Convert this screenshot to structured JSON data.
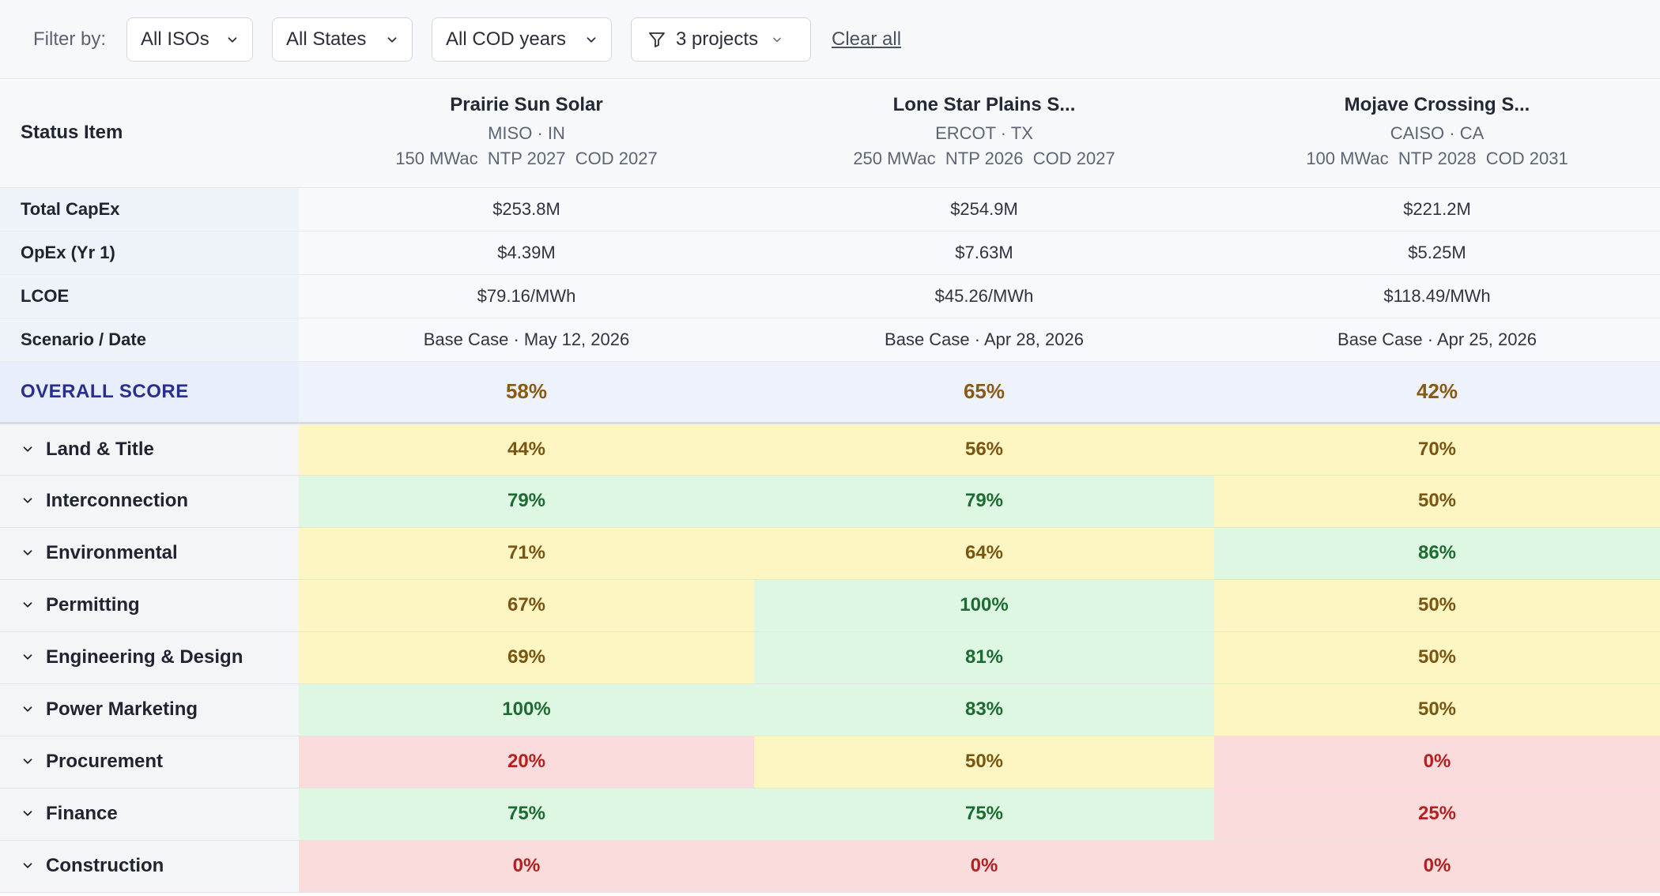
{
  "filters": {
    "label": "Filter by:",
    "iso": "All ISOs",
    "state": "All States",
    "cod": "All COD years",
    "projects": "3 projects",
    "clear": "Clear all"
  },
  "header": {
    "status_item": "Status Item",
    "projects": [
      {
        "name": "Prairie Sun Solar",
        "location": "MISO · IN",
        "specs": "150 MWac  NTP 2027  COD 2027"
      },
      {
        "name": "Lone Star Plains S...",
        "location": "ERCOT · TX",
        "specs": "250 MWac  NTP 2026  COD 2027"
      },
      {
        "name": "Mojave Crossing S...",
        "location": "CAISO · CA",
        "specs": "100 MWac  NTP 2028  COD 2031"
      }
    ]
  },
  "info_rows": [
    {
      "label": "Total CapEx",
      "values": [
        "$253.8M",
        "$254.9M",
        "$221.2M"
      ]
    },
    {
      "label": "OpEx (Yr 1)",
      "values": [
        "$4.39M",
        "$7.63M",
        "$5.25M"
      ]
    },
    {
      "label": "LCOE",
      "values": [
        "$79.16/MWh",
        "$45.26/MWh",
        "$118.49/MWh"
      ]
    },
    {
      "label": "Scenario / Date",
      "values": [
        "Base Case · May 12, 2026",
        "Base Case · Apr 28, 2026",
        "Base Case · Apr 25, 2026"
      ]
    }
  ],
  "overall": {
    "label": "OVERALL SCORE",
    "values": [
      "58%",
      "65%",
      "42%"
    ]
  },
  "categories": [
    {
      "label": "Land & Title",
      "values": [
        "44%",
        "56%",
        "70%"
      ],
      "status": [
        "yellow",
        "yellow",
        "yellow"
      ]
    },
    {
      "label": "Interconnection",
      "values": [
        "79%",
        "79%",
        "50%"
      ],
      "status": [
        "green",
        "green",
        "yellow"
      ]
    },
    {
      "label": "Environmental",
      "values": [
        "71%",
        "64%",
        "86%"
      ],
      "status": [
        "yellow",
        "yellow",
        "green"
      ]
    },
    {
      "label": "Permitting",
      "values": [
        "67%",
        "100%",
        "50%"
      ],
      "status": [
        "yellow",
        "green",
        "yellow"
      ]
    },
    {
      "label": "Engineering & Design",
      "values": [
        "69%",
        "81%",
        "50%"
      ],
      "status": [
        "yellow",
        "green",
        "yellow"
      ]
    },
    {
      "label": "Power Marketing",
      "values": [
        "100%",
        "83%",
        "50%"
      ],
      "status": [
        "green",
        "green",
        "yellow"
      ]
    },
    {
      "label": "Procurement",
      "values": [
        "20%",
        "50%",
        "0%"
      ],
      "status": [
        "red",
        "yellow",
        "red"
      ]
    },
    {
      "label": "Finance",
      "values": [
        "75%",
        "75%",
        "25%"
      ],
      "status": [
        "green",
        "green",
        "red"
      ]
    },
    {
      "label": "Construction",
      "values": [
        "0%",
        "0%",
        "0%"
      ],
      "status": [
        "red",
        "red",
        "red"
      ]
    }
  ],
  "colors": {
    "yellow": "#fdf5c2",
    "green": "#ddf7e3",
    "red": "#fadcdd",
    "overall_text": "#8a5a13",
    "overall_label": "#2a2f8f"
  }
}
